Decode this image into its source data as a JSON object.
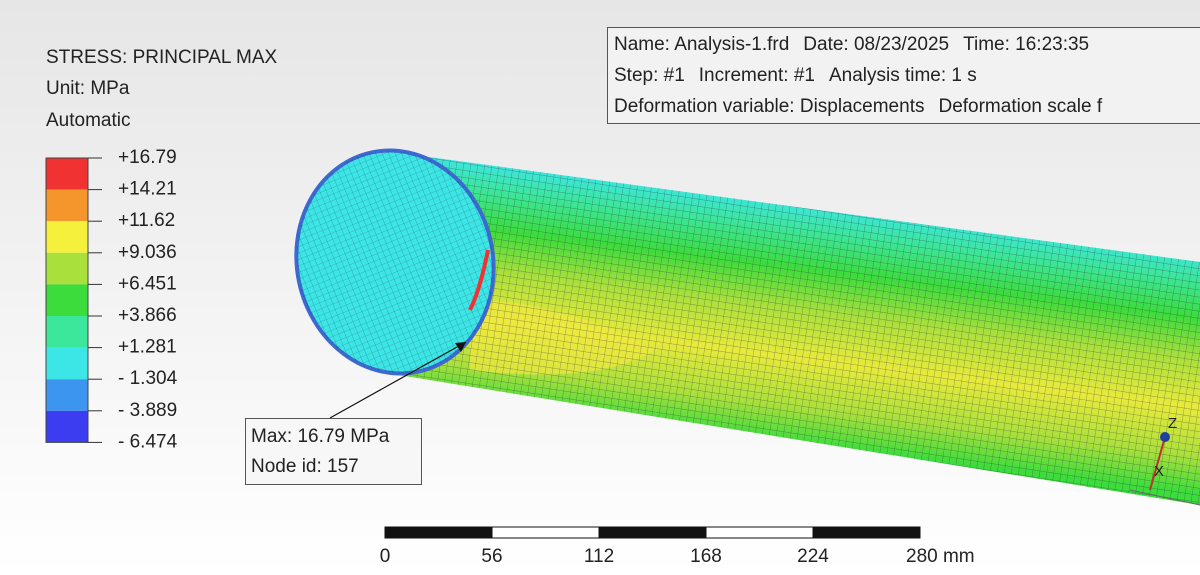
{
  "legend": {
    "title": "STRESS: PRINCIPAL MAX",
    "unit": "Unit: MPa",
    "mode": "Automatic",
    "labels": [
      "+16.79",
      "+14.21",
      "+11.62",
      "+9.036",
      "+6.451",
      "+3.866",
      "+1.281",
      "- 1.304",
      "- 3.889",
      "- 6.474"
    ],
    "colors": [
      "#f03232",
      "#f5962d",
      "#f5f03c",
      "#aae03c",
      "#3cdc3c",
      "#3ce69b",
      "#3ce6e6",
      "#3c96f0",
      "#3c3cf0"
    ]
  },
  "info": {
    "lines": [
      [
        "Name: Analysis-1.frd",
        "Date: 08/23/2025",
        "Time: 16:23:35"
      ],
      [
        "Step: #1",
        "Increment: #1",
        "Analysis time: 1 s"
      ],
      [
        "Deformation variable: Displacements",
        "Deformation scale f"
      ]
    ]
  },
  "probe": {
    "lines": [
      "Max: 16.79 MPa",
      "Node id: 157"
    ]
  },
  "scale_bar": {
    "labels": [
      "0",
      "56",
      "112",
      "168",
      "224",
      "280 mm"
    ]
  },
  "triad": {
    "labels": [
      "Z",
      "X"
    ]
  }
}
